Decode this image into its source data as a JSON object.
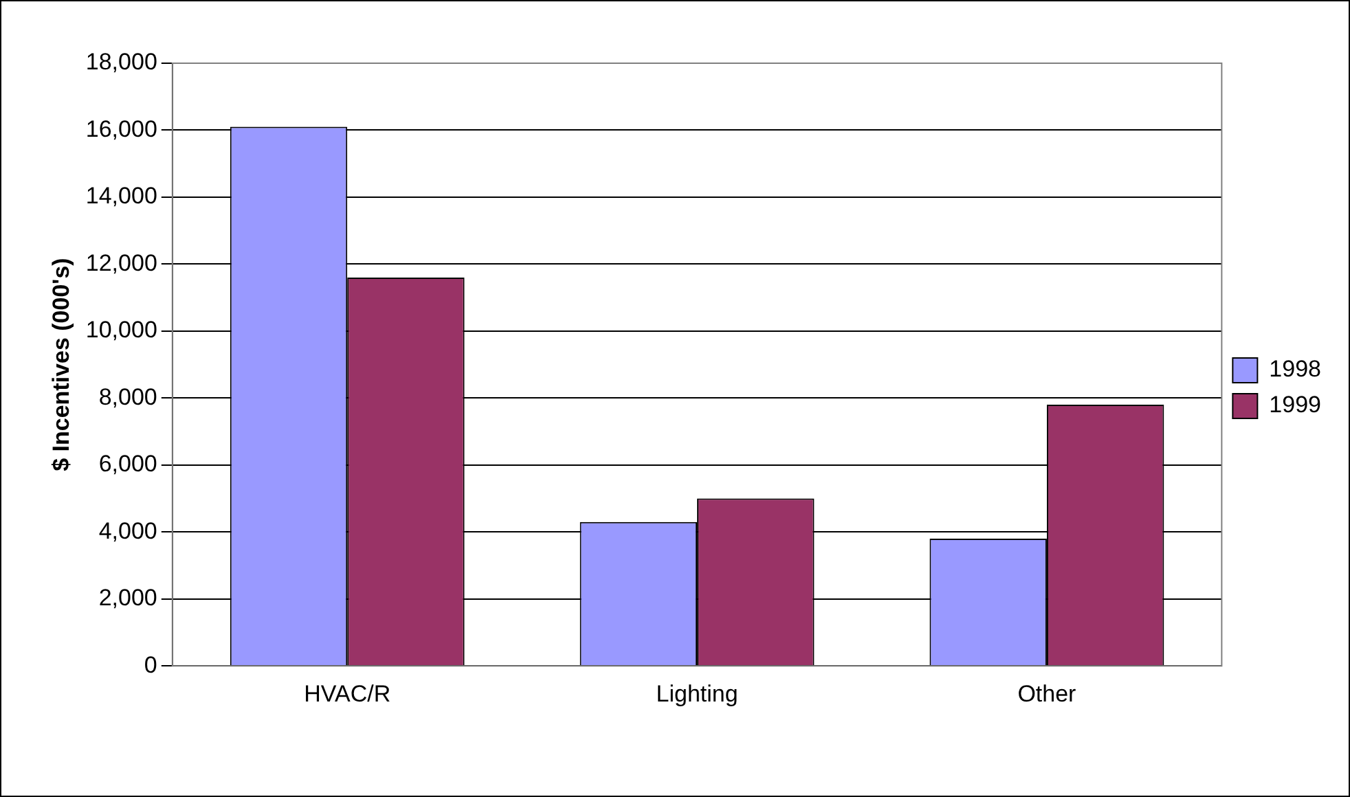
{
  "chart_data": {
    "type": "bar",
    "ylabel": "$ Incentives (000's)",
    "categories": [
      "HVAC/R",
      "Lighting",
      "Other"
    ],
    "series": [
      {
        "name": "1998",
        "color": "#9999ff",
        "values": [
          16100,
          4300,
          3800
        ]
      },
      {
        "name": "1999",
        "color": "#993366",
        "values": [
          11600,
          5000,
          7800
        ]
      }
    ],
    "ylim": [
      0,
      18000
    ],
    "yticks": [
      {
        "value": 0,
        "label": "0"
      },
      {
        "value": 2000,
        "label": "2,000"
      },
      {
        "value": 4000,
        "label": "4,000"
      },
      {
        "value": 6000,
        "label": "6,000"
      },
      {
        "value": 8000,
        "label": "8,000"
      },
      {
        "value": 10000,
        "label": "10,000"
      },
      {
        "value": 12000,
        "label": "12,000"
      },
      {
        "value": 14000,
        "label": "14,000"
      },
      {
        "value": 16000,
        "label": "16,000"
      },
      {
        "value": 18000,
        "label": "18,000"
      }
    ],
    "grid": "y",
    "legend": "right"
  }
}
